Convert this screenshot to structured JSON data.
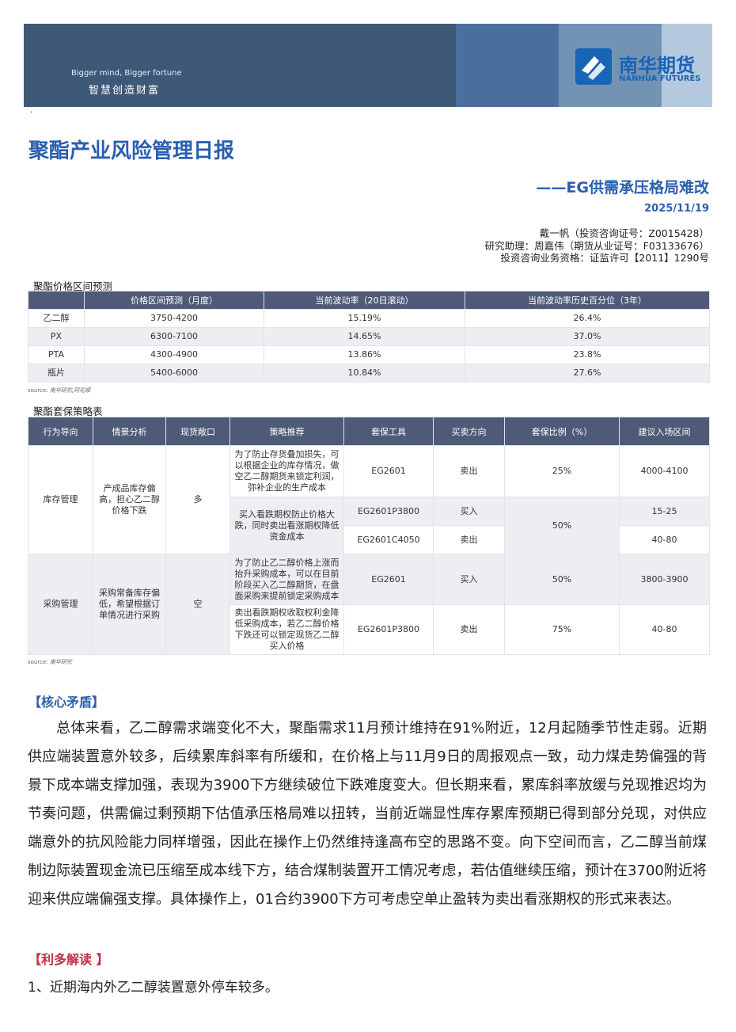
{
  "banner": {
    "slogan_en": "Bigger mind, Bigger fortune",
    "slogan_cn": "智慧创造财富",
    "logo_cn": "南华期货",
    "logo_en": "NANHUA FUTURES",
    "colors": {
      "dark": "#3e5878",
      "mid": "#4a6f9f",
      "light": "#7393b5",
      "lightest": "#b4c9de",
      "brand": "#1a64b5"
    }
  },
  "header": {
    "title": "聚酯产业风险管理日报",
    "subtitle": "——EG供需承压格局难改",
    "date": "2025/11/19",
    "authors": [
      "戴一帆（投资咨询证号：Z0015428）",
      "研究助理：周嘉伟（期货从业证号：F03133676）",
      "投资咨询业务资格：证监许可【2011】1290号"
    ]
  },
  "price_table": {
    "title": "聚酯价格区间预测",
    "headers": [
      "",
      "价格区间预测（月度）",
      "当前波动率（20日滚动）",
      "当前波动率历史百分位（3年）"
    ],
    "rows": [
      [
        "乙二醇",
        "3750-4200",
        "15.19%",
        "26.4%"
      ],
      [
        "PX",
        "6300-7100",
        "14.65%",
        "37.0%"
      ],
      [
        "PTA",
        "4300-4900",
        "13.86%",
        "23.8%"
      ],
      [
        "瓶片",
        "5400-6000",
        "10.84%",
        "27.6%"
      ]
    ],
    "source_label": "source:",
    "source": "南华研究,同花顺"
  },
  "hedge_table": {
    "title": "聚酯套保策略表",
    "headers": [
      "行为导向",
      "情景分析",
      "现货敞口",
      "策略推荐",
      "套保工具",
      "买卖方向",
      "套保比例（%）",
      "建议入场区间"
    ],
    "groups": [
      {
        "behavior": "库存管理",
        "scenario": "产成品库存偏高，担心乙二醇价格下跌",
        "exposure": "多",
        "strategies": [
          {
            "text": "为了防止存货叠加损失，可以根据企业的库存情况，做空乙二醇期货来锁定利润，弥补企业的生产成本",
            "ratio": "25%",
            "legs": [
              {
                "tool": "EG2601",
                "direction": "卖出",
                "entry": "4000-4100"
              }
            ]
          },
          {
            "text": "买入看跌期权防止价格大跌，同时卖出看涨期权降低资金成本",
            "ratio": "50%",
            "legs": [
              {
                "tool": "EG2601P3800",
                "direction": "买入",
                "entry": "15-25"
              },
              {
                "tool": "EG2601C4050",
                "direction": "卖出",
                "entry": "40-80"
              }
            ]
          }
        ]
      },
      {
        "behavior": "采购管理",
        "scenario": "采购常备库存偏低，希望根据订单情况进行采购",
        "exposure": "空",
        "strategies": [
          {
            "text": "为了防止乙二醇价格上涨而抬升采购成本，可以在目前阶段买入乙二醇期货，在盘面采购来提前锁定采购成本",
            "ratio": "50%",
            "legs": [
              {
                "tool": "EG2601",
                "direction": "买入",
                "entry": "3800-3900"
              }
            ]
          },
          {
            "text": "卖出看跌期权收取权利金降低采购成本，若乙二醇价格下跌还可以锁定现货乙二醇买入价格",
            "ratio": "75%",
            "legs": [
              {
                "tool": "EG2601P3800",
                "direction": "卖出",
                "entry": "40-80"
              }
            ]
          }
        ]
      }
    ],
    "source_label": "source:",
    "source": "南华研究"
  },
  "core": {
    "heading": "【核心矛盾】",
    "text": "总体来看，乙二醇需求端变化不大，聚酯需求11月预计维持在91%附近，12月起随季节性走弱。近期供应端装置意外较多，后续累库斜率有所缓和，在价格上与11月9日的周报观点一致，动力煤走势偏强的背景下成本端支撑加强，表现为3900下方继续破位下跌难度变大。但长期来看，累库斜率放缓与兑现推迟均为节奏问题，供需偏过剩预期下估值承压格局难以扭转，当前近端显性库存累库预期已得到部分兑现，对供应端意外的抗风险能力同样增强，因此在操作上仍然维持逢高布空的思路不变。向下空间而言，乙二醇当前煤制边际装置现金流已压缩至成本线下方，结合煤制装置开工情况考虑，若估值继续压缩，预计在3700附近将迎来供应端偏强支撑。具体操作上，01合约3900下方可考虑空单止盈转为卖出看涨期权的形式来表达。"
  },
  "bullish": {
    "heading": "【利多解读 】",
    "items": [
      "1、近期海内外乙二醇装置意外停车较多。"
    ]
  }
}
